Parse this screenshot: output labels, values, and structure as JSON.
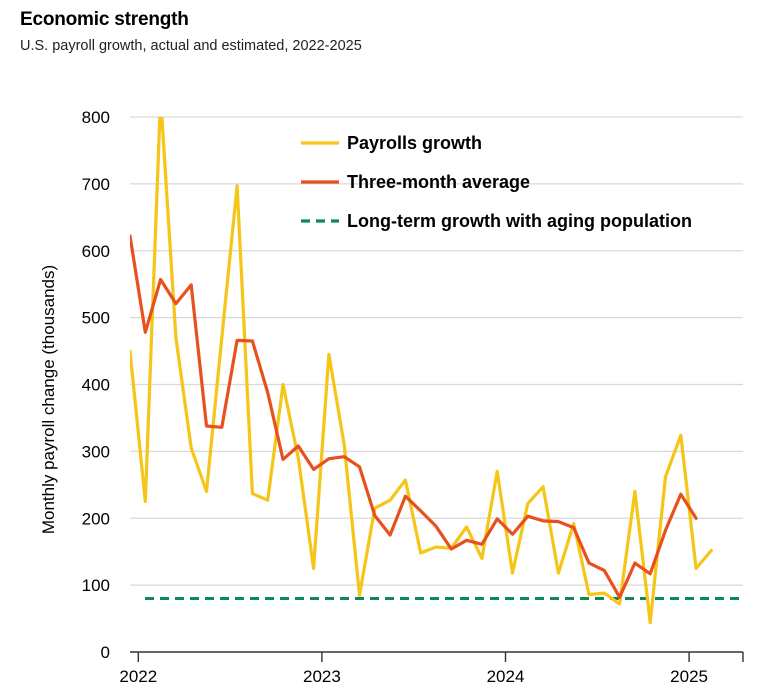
{
  "title": "Economic strength",
  "subtitle": "U.S. payroll growth, actual and estimated, 2022-2025",
  "chart_data": {
    "type": "line",
    "title": "Economic strength",
    "subtitle": "U.S. payroll growth, actual and estimated, 2022-2025",
    "xlabel": "",
    "ylabel": "Monthly payroll change (thousands)",
    "ylim": [
      0,
      800
    ],
    "yticks": [
      0,
      100,
      200,
      300,
      400,
      500,
      600,
      700,
      800
    ],
    "xticks": [
      "2022",
      "2023",
      "2024",
      "2025"
    ],
    "grid": true,
    "legend_position": "top-right",
    "x": [
      "2021-12",
      "2022-01",
      "2022-02",
      "2022-03",
      "2022-04",
      "2022-05",
      "2022-06",
      "2022-07",
      "2022-08",
      "2022-09",
      "2022-10",
      "2022-11",
      "2022-12",
      "2023-01",
      "2023-02",
      "2023-03",
      "2023-04",
      "2023-05",
      "2023-06",
      "2023-07",
      "2023-08",
      "2023-09",
      "2023-10",
      "2023-11",
      "2023-12",
      "2024-01",
      "2024-02",
      "2024-03",
      "2024-04",
      "2024-05",
      "2024-06",
      "2024-07",
      "2024-08",
      "2024-09",
      "2024-10",
      "2024-11",
      "2024-12",
      "2025-01",
      "2025-02",
      "2025-03"
    ],
    "series": [
      {
        "name": "Payrolls growth",
        "color": "#f5c518",
        "style": "solid",
        "values": [
          450,
          225,
          830,
          470,
          305,
          240,
          470,
          697,
          237,
          227,
          400,
          290,
          125,
          445,
          310,
          85,
          215,
          227,
          257,
          148,
          157,
          155,
          187,
          140,
          270,
          118,
          222,
          247,
          118,
          192,
          86,
          88,
          72,
          240,
          44,
          262,
          324,
          125,
          152,
          null
        ]
      },
      {
        "name": "Three-month average",
        "color": "#e8501e",
        "style": "solid",
        "values": [
          622,
          478,
          557,
          521,
          549,
          338,
          336,
          466,
          465,
          388,
          288,
          308,
          273,
          289,
          292,
          277,
          204,
          175,
          233,
          211,
          188,
          154,
          167,
          161,
          199,
          176,
          203,
          196,
          195,
          186,
          133,
          122,
          82,
          133,
          117,
          182,
          236,
          200,
          null,
          null
        ]
      },
      {
        "name": "Long-term growth with aging population",
        "color": "#0a8a55",
        "style": "dashed",
        "values": [
          80,
          80,
          80,
          80,
          80,
          80,
          80,
          80,
          80,
          80,
          80,
          80,
          80,
          80,
          80,
          80,
          80,
          80,
          80,
          80,
          80,
          80,
          80,
          80,
          80,
          80,
          80,
          80,
          80,
          80,
          80,
          80,
          80,
          80,
          80,
          80,
          80,
          80,
          80,
          80
        ]
      }
    ]
  }
}
